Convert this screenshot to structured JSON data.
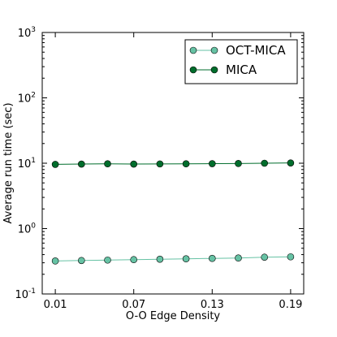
{
  "chart_data": {
    "type": "line",
    "title": "",
    "xlabel": "O-O Edge Density",
    "ylabel": "Average run time (sec)",
    "y_scale": "log",
    "xlim": [
      0.0,
      0.2
    ],
    "ylim": [
      0.1,
      1000
    ],
    "x_ticks": [
      0.01,
      0.07,
      0.13,
      0.19
    ],
    "x_tick_labels": [
      "0.01",
      "0.07",
      "0.13",
      "0.19"
    ],
    "y_ticks": [
      0.1,
      1,
      10,
      100,
      1000
    ],
    "y_tick_base": "10",
    "y_tick_exponents": [
      "-1",
      "0",
      "1",
      "2",
      "3"
    ],
    "grid": false,
    "legend_position": "top-right",
    "x": [
      0.01,
      0.03,
      0.05,
      0.07,
      0.09,
      0.11,
      0.13,
      0.15,
      0.17,
      0.19
    ],
    "series": [
      {
        "name": "OCT-MICA",
        "color": "#66c2a4",
        "marker": "circle",
        "values": [
          0.32,
          0.325,
          0.33,
          0.335,
          0.34,
          0.345,
          0.35,
          0.355,
          0.365,
          0.37
        ]
      },
      {
        "name": "MICA",
        "color": "#006d2c",
        "marker": "circle",
        "values": [
          9.6,
          9.7,
          9.8,
          9.7,
          9.75,
          9.8,
          9.85,
          9.9,
          10.0,
          10.1
        ]
      }
    ]
  }
}
